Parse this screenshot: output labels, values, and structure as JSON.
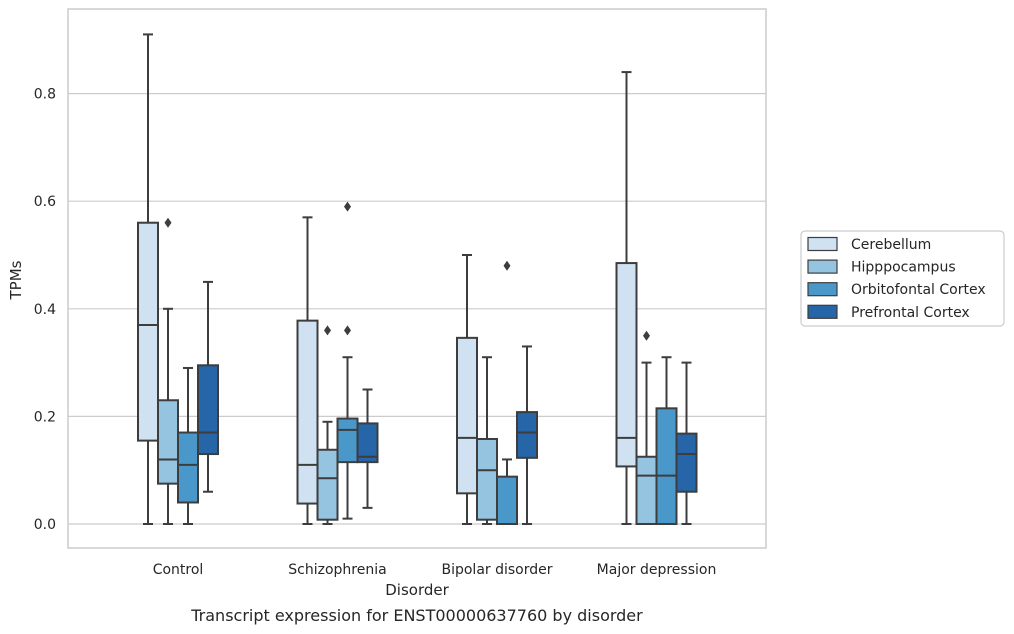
{
  "caption": "Transcript expression for ENST00000637760 by disorder",
  "chart_data": {
    "type": "box",
    "xlabel": "Disorder",
    "ylabel": "TPMs",
    "categories": [
      "Control",
      "Schizophrenia",
      "Bipolar disorder",
      "Major depression"
    ],
    "yticks": [
      "0.0",
      "0.2",
      "0.4",
      "0.6",
      "0.8"
    ],
    "ylim": [
      -0.045,
      0.955
    ],
    "grid": "horizontal",
    "legend_position": "right",
    "series": [
      {
        "name": "Cerebellum",
        "color": "#d0e1f2",
        "boxes": [
          {
            "min": 0.0,
            "q1": 0.155,
            "median": 0.37,
            "q3": 0.56,
            "max": 0.91,
            "outliers": []
          },
          {
            "min": 0.0,
            "q1": 0.038,
            "median": 0.11,
            "q3": 0.378,
            "max": 0.57,
            "outliers": []
          },
          {
            "min": 0.0,
            "q1": 0.057,
            "median": 0.16,
            "q3": 0.346,
            "max": 0.5,
            "outliers": []
          },
          {
            "min": 0.0,
            "q1": 0.107,
            "median": 0.16,
            "q3": 0.485,
            "max": 0.84,
            "outliers": []
          }
        ]
      },
      {
        "name": "Hipppocampus",
        "color": "#94c4df",
        "boxes": [
          {
            "min": 0.0,
            "q1": 0.075,
            "median": 0.12,
            "q3": 0.23,
            "max": 0.4,
            "outliers": [
              0.56
            ]
          },
          {
            "min": 0.0,
            "q1": 0.008,
            "median": 0.085,
            "q3": 0.138,
            "max": 0.19,
            "outliers": [
              0.36
            ]
          },
          {
            "min": 0.0,
            "q1": 0.008,
            "median": 0.1,
            "q3": 0.158,
            "max": 0.31,
            "outliers": []
          },
          {
            "min": 0.0,
            "q1": 0.0,
            "median": 0.09,
            "q3": 0.125,
            "max": 0.3,
            "outliers": [
              0.35
            ]
          }
        ]
      },
      {
        "name": "Orbitofontal Cortex",
        "color": "#4a98c9",
        "boxes": [
          {
            "min": 0.0,
            "q1": 0.04,
            "median": 0.11,
            "q3": 0.17,
            "max": 0.29,
            "outliers": []
          },
          {
            "min": 0.01,
            "q1": 0.115,
            "median": 0.175,
            "q3": 0.196,
            "max": 0.31,
            "outliers": [
              0.36,
              0.59
            ]
          },
          {
            "min": 0.0,
            "q1": 0.0,
            "median": 0.0,
            "q3": 0.088,
            "max": 0.12,
            "outliers": [
              0.48
            ]
          },
          {
            "min": 0.0,
            "q1": 0.0,
            "median": 0.09,
            "q3": 0.215,
            "max": 0.31,
            "outliers": []
          }
        ]
      },
      {
        "name": "Prefrontal Cortex",
        "color": "#2565a8",
        "boxes": [
          {
            "min": 0.06,
            "q1": 0.13,
            "median": 0.17,
            "q3": 0.295,
            "max": 0.45,
            "outliers": []
          },
          {
            "min": 0.03,
            "q1": 0.115,
            "median": 0.125,
            "q3": 0.187,
            "max": 0.25,
            "outliers": []
          },
          {
            "min": 0.0,
            "q1": 0.123,
            "median": 0.17,
            "q3": 0.208,
            "max": 0.33,
            "outliers": []
          },
          {
            "min": 0.0,
            "q1": 0.06,
            "median": 0.13,
            "q3": 0.168,
            "max": 0.3,
            "outliers": []
          }
        ]
      }
    ]
  }
}
